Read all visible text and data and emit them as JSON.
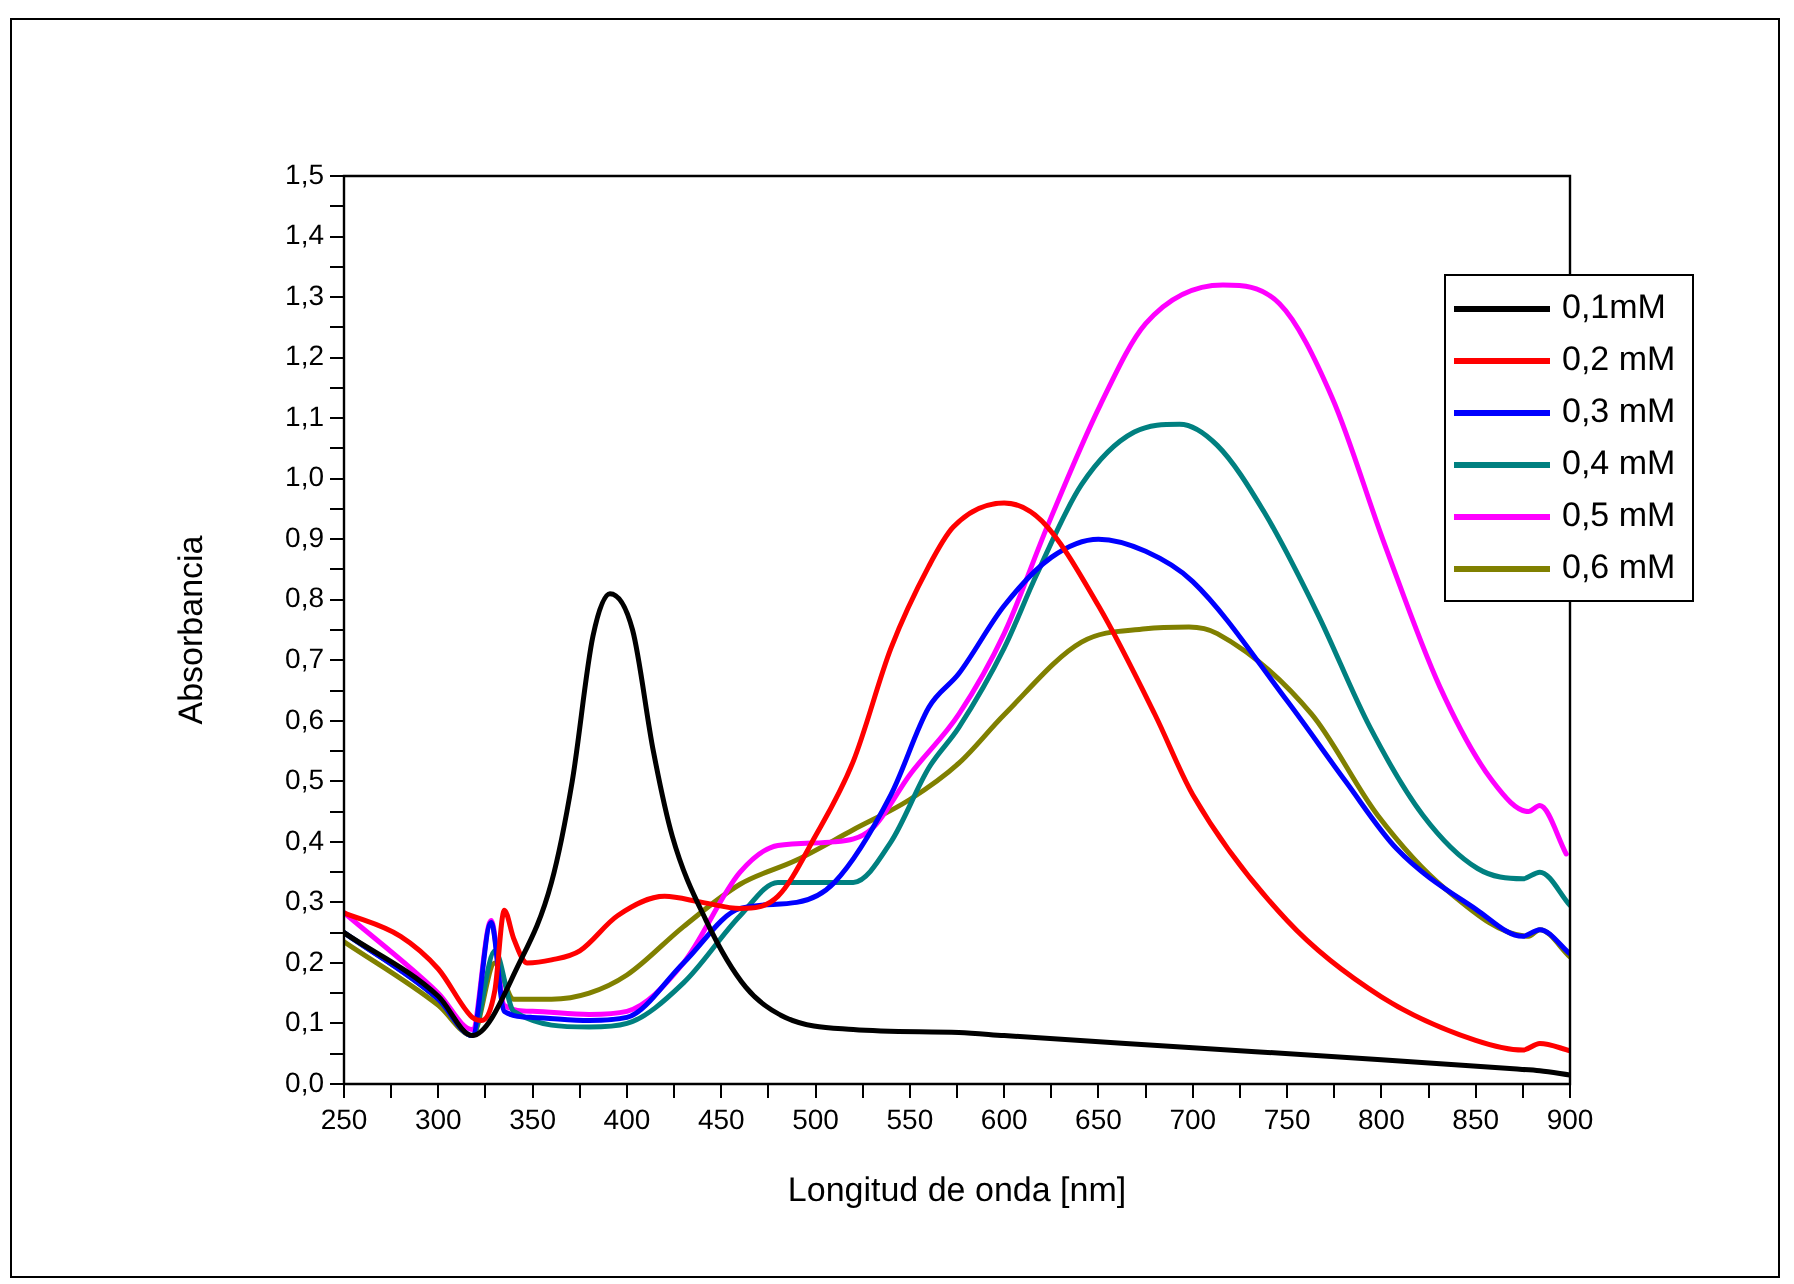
{
  "chart_data": {
    "type": "line",
    "xlabel": "Longitud de onda [nm]",
    "ylabel": "Absorbancia",
    "xlim": [
      250,
      900
    ],
    "ylim": [
      0,
      1.5
    ],
    "xticks": [
      250,
      {
        "value": 275,
        "label": null
      },
      300,
      {
        "value": 325,
        "label": null
      },
      350,
      {
        "value": 375,
        "label": null
      },
      400,
      {
        "value": 425,
        "label": null
      },
      450,
      {
        "value": 475,
        "label": null
      },
      500,
      {
        "value": 525,
        "label": null
      },
      550,
      {
        "value": 575,
        "label": null
      },
      600,
      {
        "value": 625,
        "label": null
      },
      650,
      {
        "value": 675,
        "label": null
      },
      700,
      {
        "value": 725,
        "label": null
      },
      750,
      {
        "value": 775,
        "label": null
      },
      800,
      {
        "value": 825,
        "label": null
      },
      850,
      {
        "value": 875,
        "label": null
      },
      900
    ],
    "yticks": [
      {
        "value": 0,
        "label": "0,0"
      },
      {
        "value": 0.05,
        "label": null
      },
      {
        "value": 0.1,
        "label": "0,1"
      },
      {
        "value": 0.15,
        "label": null
      },
      {
        "value": 0.2,
        "label": "0,2"
      },
      {
        "value": 0.25,
        "label": null
      },
      {
        "value": 0.3,
        "label": "0,3"
      },
      {
        "value": 0.35,
        "label": null
      },
      {
        "value": 0.4,
        "label": "0,4"
      },
      {
        "value": 0.45,
        "label": null
      },
      {
        "value": 0.5,
        "label": "0,5"
      },
      {
        "value": 0.55,
        "label": null
      },
      {
        "value": 0.6,
        "label": "0,6"
      },
      {
        "value": 0.65,
        "label": null
      },
      {
        "value": 0.7,
        "label": "0,7"
      },
      {
        "value": 0.75,
        "label": null
      },
      {
        "value": 0.8,
        "label": "0,8"
      },
      {
        "value": 0.85,
        "label": null
      },
      {
        "value": 0.9,
        "label": "0,9"
      },
      {
        "value": 0.95,
        "label": null
      },
      {
        "value": 1.0,
        "label": "1,0"
      },
      {
        "value": 1.05,
        "label": null
      },
      {
        "value": 1.1,
        "label": "1,1"
      },
      {
        "value": 1.15,
        "label": null
      },
      {
        "value": 1.2,
        "label": "1,2"
      },
      {
        "value": 1.25,
        "label": null
      },
      {
        "value": 1.3,
        "label": "1,3"
      },
      {
        "value": 1.35,
        "label": null
      },
      {
        "value": 1.4,
        "label": "1,4"
      },
      {
        "value": 1.45,
        "label": null
      },
      {
        "value": 1.5,
        "label": "1,5"
      }
    ],
    "grid": false,
    "legend": "top right",
    "marker": "none",
    "line_style": "solid",
    "series": [
      {
        "name": "0,1mM",
        "color": "#000000",
        "x": [
          250,
          300,
          318,
          343,
          360,
          371,
          382,
          391,
          403,
          414,
          424,
          442,
          463,
          484,
          520,
          576,
          600,
          700,
          800,
          870,
          884,
          900
        ],
        "values": [
          0.25,
          0.145,
          0.08,
          0.2,
          0.333,
          0.5,
          0.74,
          0.81,
          0.75,
          0.55,
          0.41,
          0.27,
          0.16,
          0.11,
          0.09,
          0.085,
          0.08,
          0.06,
          0.04,
          0.025,
          0.022,
          0.015
        ]
      },
      {
        "name": "0,2 mM",
        "color": "#ff0000",
        "x": [
          250,
          280,
          300,
          318,
          323,
          330,
          335,
          340,
          347,
          360,
          375,
          395,
          420,
          440,
          460,
          480,
          500,
          520,
          540,
          560,
          573,
          600,
          620,
          650,
          680,
          700,
          750,
          800,
          850,
          875,
          884,
          900
        ],
        "values": [
          0.283,
          0.244,
          0.19,
          0.11,
          0.105,
          0.155,
          0.287,
          0.24,
          0.2,
          0.205,
          0.22,
          0.278,
          0.31,
          0.3,
          0.29,
          0.31,
          0.41,
          0.533,
          0.72,
          0.855,
          0.92,
          0.96,
          0.93,
          0.79,
          0.61,
          0.478,
          0.27,
          0.144,
          0.072,
          0.056,
          0.067,
          0.055
        ]
      },
      {
        "name": "0,3 mM",
        "color": "#0000ff",
        "x": [
          250,
          300,
          318,
          328,
          335,
          350,
          380,
          400,
          430,
          460,
          490,
          510,
          540,
          560,
          576,
          600,
          625,
          650,
          675,
          700,
          750,
          781,
          808,
          850,
          875,
          884,
          900
        ],
        "values": [
          0.25,
          0.14,
          0.08,
          0.267,
          0.12,
          0.11,
          0.105,
          0.11,
          0.2,
          0.29,
          0.3,
          0.333,
          0.478,
          0.622,
          0.678,
          0.79,
          0.87,
          0.9,
          0.88,
          0.83,
          0.633,
          0.5,
          0.389,
          0.289,
          0.244,
          0.255,
          0.215
        ]
      },
      {
        "name": "0,4 mM",
        "color": "#008080",
        "x": [
          250,
          300,
          318,
          330,
          340,
          380,
          400,
          430,
          460,
          480,
          520,
          540,
          560,
          576,
          600,
          617,
          641,
          669,
          693,
          713,
          738,
          766,
          794,
          822,
          851,
          875,
          884,
          900
        ],
        "values": [
          0.25,
          0.14,
          0.08,
          0.22,
          0.12,
          0.094,
          0.1,
          0.167,
          0.278,
          0.333,
          0.333,
          0.4,
          0.522,
          0.589,
          0.72,
          0.84,
          0.99,
          1.077,
          1.09,
          1.055,
          0.944,
          0.778,
          0.589,
          0.444,
          0.356,
          0.339,
          0.35,
          0.295
        ]
      },
      {
        "name": "0,5 mM",
        "color": "#ff00ff",
        "x": [
          250,
          300,
          318,
          328,
          335,
          350,
          380,
          400,
          430,
          460,
          480,
          510,
          530,
          550,
          576,
          600,
          623,
          651,
          675,
          716,
          746,
          774,
          802,
          831,
          859,
          878,
          884,
          898
        ],
        "values": [
          0.283,
          0.15,
          0.09,
          0.27,
          0.13,
          0.12,
          0.115,
          0.12,
          0.2,
          0.35,
          0.394,
          0.4,
          0.422,
          0.511,
          0.611,
          0.744,
          0.922,
          1.122,
          1.256,
          1.32,
          1.289,
          1.133,
          0.889,
          0.656,
          0.5,
          0.45,
          0.46,
          0.38
        ]
      },
      {
        "name": "0,6 mM",
        "color": "#808000",
        "x": [
          250,
          300,
          318,
          330,
          340,
          360,
          380,
          400,
          430,
          460,
          490,
          520,
          550,
          576,
          600,
          641,
          675,
          698,
          713,
          763,
          798,
          834,
          878,
          884,
          900
        ],
        "values": [
          0.235,
          0.13,
          0.08,
          0.2,
          0.14,
          0.14,
          0.15,
          0.18,
          0.26,
          0.33,
          0.37,
          0.42,
          0.47,
          0.53,
          0.61,
          0.73,
          0.752,
          0.755,
          0.744,
          0.611,
          0.444,
          0.322,
          0.244,
          0.255,
          0.21
        ]
      }
    ]
  }
}
